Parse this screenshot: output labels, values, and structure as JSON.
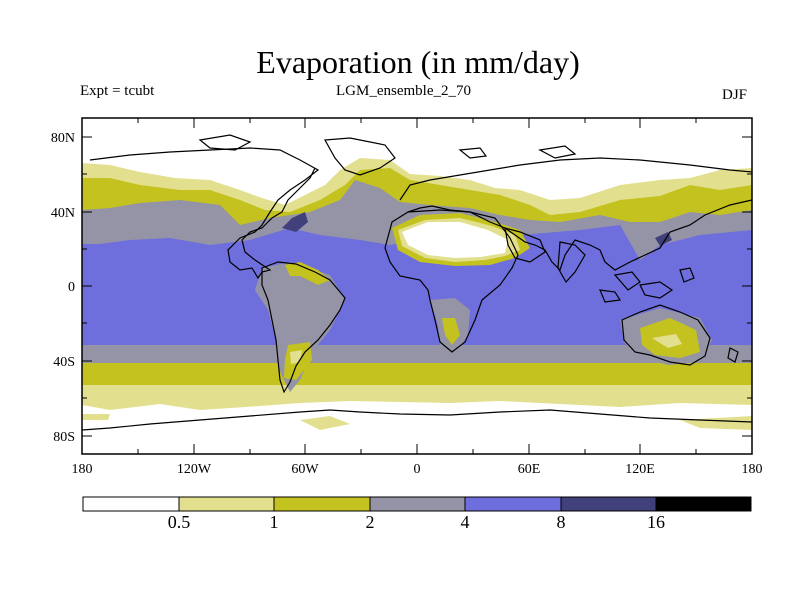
{
  "header": {
    "title": "Evaporation (in mm/day)",
    "expt_label": "Expt = tcubt",
    "run_name": "LGM_ensemble_2_70",
    "season": "DJF"
  },
  "colors": {
    "lt0_5": "#ffffff",
    "b0_5_1": "#e2e08e",
    "b1_2": "#c4c21e",
    "b2_4": "#9494a6",
    "b4_8": "#6e6edc",
    "b8_16": "#40407a",
    "gt16": "#000000"
  },
  "chart_data": {
    "type": "heatmap",
    "title": "Evaporation (in mm/day)",
    "variable": "Evaporation",
    "units": "mm/day",
    "x_ticks": [
      "180",
      "120W",
      "60W",
      "0",
      "60E",
      "120E",
      "180"
    ],
    "y_ticks": [
      "80N",
      "40N",
      "0",
      "40S",
      "80S"
    ],
    "xlim": [
      -180,
      180
    ],
    "ylim": [
      -90,
      90
    ],
    "colorbar": {
      "levels": [
        "0.5",
        "1",
        "2",
        "4",
        "8",
        "16"
      ],
      "bins": [
        "<0.5",
        "0.5-1",
        "1-2",
        "2-4",
        "4-8",
        "8-16",
        ">16"
      ]
    }
  }
}
